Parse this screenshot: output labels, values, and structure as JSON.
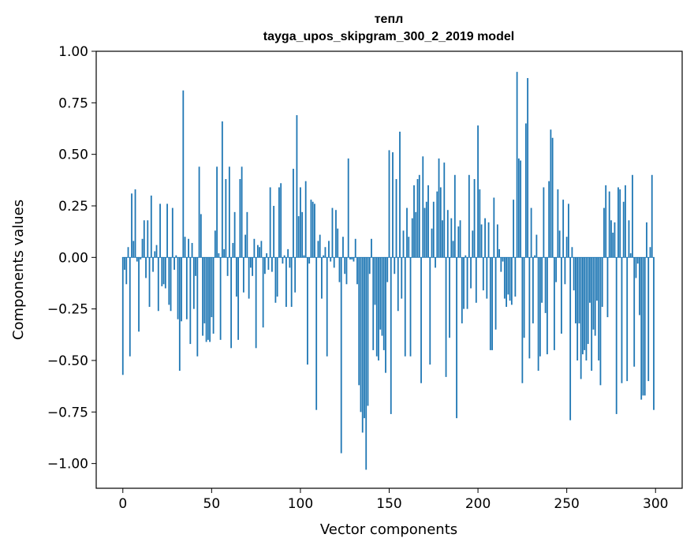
{
  "chart_data": {
    "type": "bar",
    "title": "тепл",
    "subtitle": "tayga_upos_skipgram_300_2_2019 model",
    "xlabel": "Vector components",
    "ylabel": "Components values",
    "xlim": [
      -15,
      315
    ],
    "ylim": [
      -1.12,
      1.0
    ],
    "xticks": [
      0,
      50,
      100,
      150,
      200,
      250,
      300
    ],
    "xtick_labels": [
      "0",
      "50",
      "100",
      "150",
      "200",
      "250",
      "300"
    ],
    "yticks": [
      -1.0,
      -0.75,
      -0.5,
      -0.25,
      0.0,
      0.25,
      0.5,
      0.75,
      1.0
    ],
    "ytick_labels": [
      "−1.00",
      "−0.75",
      "−0.50",
      "−0.25",
      "0.00",
      "0.25",
      "0.50",
      "0.75",
      "1.00"
    ],
    "grid": false,
    "bar_color": "#1f77b4",
    "x": [
      0,
      1,
      2,
      3,
      4,
      5,
      6,
      7,
      8,
      9,
      10,
      11,
      12,
      13,
      14,
      15,
      16,
      17,
      18,
      19,
      20,
      21,
      22,
      23,
      24,
      25,
      26,
      27,
      28,
      29,
      30,
      31,
      32,
      33,
      34,
      35,
      36,
      37,
      38,
      39,
      40,
      41,
      42,
      43,
      44,
      45,
      46,
      47,
      48,
      49,
      50,
      51,
      52,
      53,
      54,
      55,
      56,
      57,
      58,
      59,
      60,
      61,
      62,
      63,
      64,
      65,
      66,
      67,
      68,
      69,
      70,
      71,
      72,
      73,
      74,
      75,
      76,
      77,
      78,
      79,
      80,
      81,
      82,
      83,
      84,
      85,
      86,
      87,
      88,
      89,
      90,
      91,
      92,
      93,
      94,
      95,
      96,
      97,
      98,
      99,
      100,
      101,
      102,
      103,
      104,
      105,
      106,
      107,
      108,
      109,
      110,
      111,
      112,
      113,
      114,
      115,
      116,
      117,
      118,
      119,
      120,
      121,
      122,
      123,
      124,
      125,
      126,
      127,
      128,
      129,
      130,
      131,
      132,
      133,
      134,
      135,
      136,
      137,
      138,
      139,
      140,
      141,
      142,
      143,
      144,
      145,
      146,
      147,
      148,
      149,
      150,
      151,
      152,
      153,
      154,
      155,
      156,
      157,
      158,
      159,
      160,
      161,
      162,
      163,
      164,
      165,
      166,
      167,
      168,
      169,
      170,
      171,
      172,
      173,
      174,
      175,
      176,
      177,
      178,
      179,
      180,
      181,
      182,
      183,
      184,
      185,
      186,
      187,
      188,
      189,
      190,
      191,
      192,
      193,
      194,
      195,
      196,
      197,
      198,
      199,
      200,
      201,
      202,
      203,
      204,
      205,
      206,
      207,
      208,
      209,
      210,
      211,
      212,
      213,
      214,
      215,
      216,
      217,
      218,
      219,
      220,
      221,
      222,
      223,
      224,
      225,
      226,
      227,
      228,
      229,
      230,
      231,
      232,
      233,
      234,
      235,
      236,
      237,
      238,
      239,
      240,
      241,
      242,
      243,
      244,
      245,
      246,
      247,
      248,
      249,
      250,
      251,
      252,
      253,
      254,
      255,
      256,
      257,
      258,
      259,
      260,
      261,
      262,
      263,
      264,
      265,
      266,
      267,
      268,
      269,
      270,
      271,
      272,
      273,
      274,
      275,
      276,
      277,
      278,
      279,
      280,
      281,
      282,
      283,
      284,
      285,
      286,
      287,
      288,
      289,
      290,
      291,
      292,
      293,
      294,
      295,
      296,
      297,
      298,
      299
    ],
    "values": [
      -0.57,
      -0.06,
      -0.13,
      0.05,
      -0.48,
      0.31,
      0.08,
      0.33,
      -0.02,
      -0.36,
      -0.01,
      0.09,
      0.18,
      -0.1,
      0.18,
      -0.24,
      0.3,
      -0.07,
      0.03,
      0.06,
      -0.26,
      0.26,
      -0.14,
      -0.13,
      -0.15,
      0.26,
      -0.23,
      -0.26,
      0.24,
      -0.06,
      0.01,
      -0.3,
      -0.55,
      -0.31,
      0.81,
      0.1,
      -0.3,
      0.09,
      -0.42,
      0.07,
      -0.25,
      -0.09,
      -0.48,
      0.44,
      0.21,
      -0.38,
      -0.32,
      -0.41,
      -0.4,
      -0.41,
      -0.29,
      -0.37,
      0.13,
      0.44,
      0.02,
      -0.4,
      0.66,
      0.04,
      0.38,
      -0.09,
      0.44,
      -0.44,
      0.07,
      0.22,
      -0.19,
      -0.4,
      0.38,
      0.44,
      -0.17,
      0.11,
      0.22,
      -0.2,
      -0.05,
      -0.09,
      0.09,
      -0.44,
      0.06,
      0.05,
      0.08,
      -0.34,
      -0.08,
      0.02,
      -0.06,
      0.34,
      -0.07,
      0.25,
      -0.22,
      -0.19,
      0.34,
      0.36,
      -0.03,
      0.01,
      -0.24,
      0.04,
      -0.05,
      -0.24,
      0.43,
      -0.17,
      0.69,
      0.2,
      0.34,
      0.22,
      0.01,
      0.37,
      -0.52,
      -0.03,
      0.28,
      0.27,
      0.26,
      -0.74,
      0.08,
      0.11,
      -0.2,
      0.01,
      0.05,
      -0.48,
      0.08,
      -0.02,
      0.24,
      -0.05,
      0.23,
      0.14,
      -0.12,
      -0.95,
      0.1,
      -0.08,
      -0.13,
      0.48,
      -0.01,
      -0.01,
      -0.02,
      0.09,
      -0.13,
      -0.62,
      -0.75,
      -0.85,
      -0.78,
      -1.03,
      -0.72,
      -0.08,
      0.09,
      -0.45,
      -0.23,
      -0.48,
      -0.5,
      -0.35,
      -0.38,
      -0.45,
      -0.56,
      -0.12,
      0.52,
      -0.76,
      0.51,
      -0.08,
      0.38,
      -0.26,
      0.61,
      -0.2,
      0.13,
      -0.48,
      0.24,
      0.1,
      -0.48,
      0.19,
      0.35,
      0.22,
      0.38,
      0.4,
      -0.61,
      0.49,
      0.24,
      0.27,
      0.35,
      -0.52,
      0.14,
      0.27,
      -0.05,
      0.32,
      0.48,
      0.34,
      0.18,
      0.46,
      -0.58,
      0.23,
      -0.39,
      0.19,
      0.08,
      0.4,
      -0.78,
      0.15,
      0.18,
      -0.32,
      -0.25,
      0.01,
      -0.25,
      0.4,
      -0.15,
      0.13,
      0.38,
      -0.22,
      0.64,
      0.33,
      0.16,
      -0.16,
      0.19,
      -0.2,
      0.17,
      -0.45,
      -0.45,
      0.29,
      -0.35,
      0.16,
      0.04,
      -0.07,
      -0.02,
      -0.2,
      -0.24,
      -0.18,
      -0.21,
      -0.23,
      0.28,
      -0.19,
      0.9,
      0.48,
      0.47,
      -0.61,
      -0.39,
      0.65,
      0.87,
      -0.49,
      0.24,
      -0.32,
      0.01,
      0.11,
      -0.55,
      -0.48,
      -0.22,
      0.34,
      -0.27,
      -0.47,
      0.37,
      0.62,
      0.58,
      -0.45,
      -0.12,
      0.33,
      0.13,
      -0.37,
      0.28,
      -0.13,
      0.1,
      0.26,
      -0.79,
      0.05,
      -0.16,
      -0.32,
      -0.5,
      -0.32,
      -0.59,
      -0.47,
      -0.45,
      -0.5,
      -0.42,
      -0.22,
      -0.55,
      -0.35,
      -0.38,
      -0.21,
      -0.5,
      -0.62,
      -0.24,
      0.24,
      0.35,
      -0.29,
      0.32,
      0.18,
      0.12,
      0.17,
      -0.76,
      0.34,
      0.33,
      -0.61,
      0.27,
      0.35,
      -0.6,
      0.18,
      0.02,
      0.4,
      -0.53,
      -0.1,
      -0.03,
      -0.28,
      -0.69,
      -0.67,
      -0.67,
      0.17,
      -0.6,
      0.05,
      0.4,
      -0.74
    ],
    "x_axis_tick_length": 6
  }
}
